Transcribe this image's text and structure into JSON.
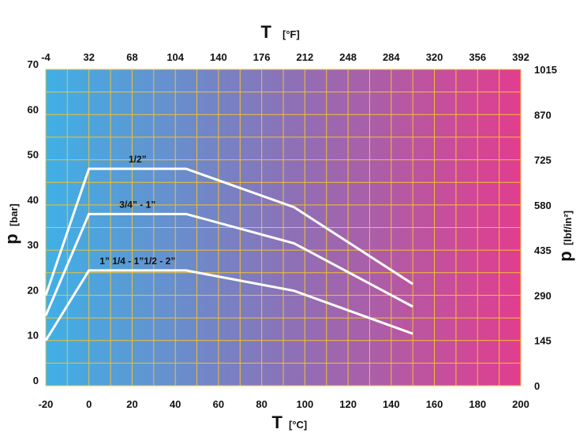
{
  "chart_data": {
    "type": "line",
    "x_axis": {
      "symbol": "T",
      "unit": "[°C]",
      "range": [
        -20,
        200
      ],
      "ticks": [
        "-20",
        "0",
        "20",
        "40",
        "60",
        "80",
        "100",
        "120",
        "140",
        "160",
        "180",
        "200"
      ]
    },
    "x2_axis": {
      "symbol": "T",
      "unit": "[°F]",
      "ticks": [
        "-4",
        "32",
        "68",
        "104",
        "140",
        "176",
        "212",
        "248",
        "284",
        "320",
        "356",
        "392"
      ]
    },
    "y_axis": {
      "symbol": "p",
      "unit": "[bar]",
      "range": [
        0,
        70
      ],
      "ticks": [
        "0",
        "10",
        "20",
        "30",
        "40",
        "50",
        "60",
        "70"
      ]
    },
    "y2_axis": {
      "symbol": "p",
      "unit": "[lbf/in²]",
      "ticks": [
        "0",
        "145",
        "290",
        "435",
        "580",
        "725",
        "870",
        "1015"
      ]
    },
    "grid": true,
    "series": [
      {
        "name": "1/2”",
        "x": [
          -20,
          0,
          45,
          95,
          150
        ],
        "y": [
          20,
          48,
          48,
          39.5,
          22.5
        ]
      },
      {
        "name": "3/4” - 1”",
        "x": [
          -20,
          0,
          45,
          95,
          150
        ],
        "y": [
          15.5,
          38,
          38,
          31.5,
          17.5
        ]
      },
      {
        "name": "1” 1/4 - 1”1/2 - 2”",
        "x": [
          -20,
          0,
          45,
          95,
          150
        ],
        "y": [
          10,
          25.5,
          25.5,
          21,
          11.5
        ]
      }
    ],
    "colors": {
      "gradient_start": "#3fb0e6",
      "gradient_mid": "#8a72b8",
      "gradient_end": "#e23d8e",
      "grid": "#f2c12e",
      "series_line": "#ffffff"
    }
  }
}
